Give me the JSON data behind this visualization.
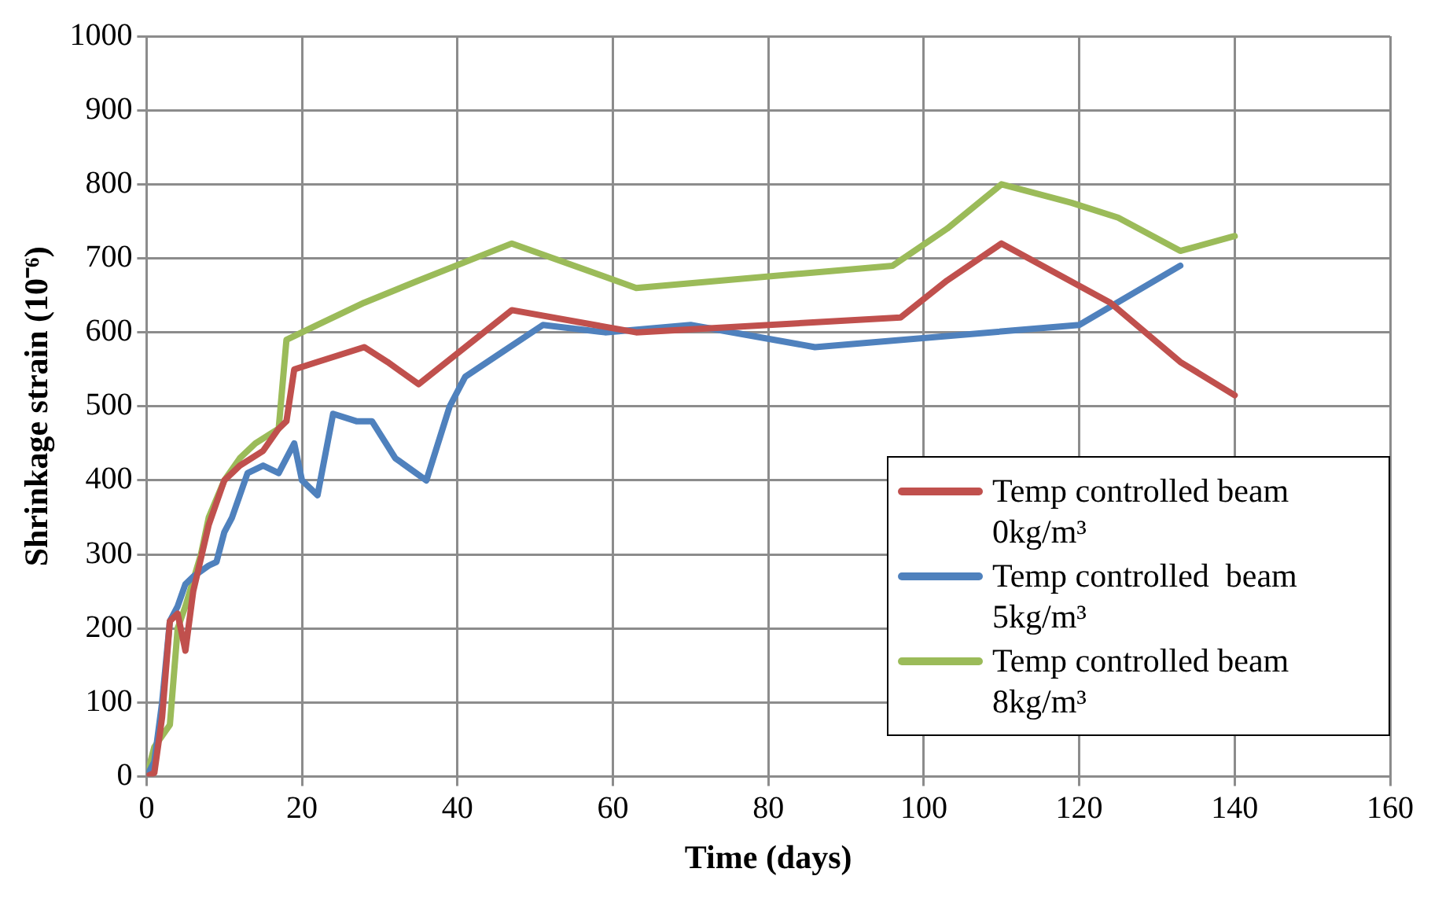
{
  "chart_data": {
    "type": "line",
    "xlabel": "Time (days)",
    "ylabel": "Shrinkage strain (10⁻⁶)",
    "xlim": [
      0,
      160
    ],
    "xticks": [
      0,
      20,
      40,
      60,
      80,
      100,
      120,
      140,
      160
    ],
    "ylim": [
      0,
      1000
    ],
    "yticks": [
      0,
      100,
      200,
      300,
      400,
      500,
      600,
      700,
      800,
      900,
      1000
    ],
    "grid": true,
    "legend": "bottom right",
    "marker": "none",
    "line_style": "solid",
    "series": [
      {
        "name": "Temp controlled beam 0kg/m³",
        "color": "#c0504d",
        "x": [
          0,
          1,
          2,
          3,
          4,
          5,
          6,
          8,
          10,
          11,
          12,
          15,
          17,
          18,
          19,
          22,
          28,
          31,
          35,
          47,
          63,
          97,
          103,
          110,
          124,
          133,
          140
        ],
        "values": [
          0,
          5,
          80,
          210,
          220,
          170,
          250,
          340,
          400,
          410,
          420,
          440,
          470,
          480,
          550,
          560,
          580,
          560,
          530,
          630,
          600,
          620,
          670,
          720,
          640,
          560,
          515
        ]
      },
      {
        "name": "Temp controlled  beam 5kg/m³",
        "color": "#4f81bd",
        "x": [
          0,
          1,
          2,
          3,
          4,
          5,
          6,
          8,
          9,
          10,
          11,
          12,
          13,
          15,
          17,
          18,
          19,
          20,
          22,
          24,
          27,
          29,
          32,
          36,
          39,
          41,
          46,
          51,
          59,
          70,
          86,
          120,
          133
        ],
        "values": [
          0,
          20,
          100,
          210,
          230,
          260,
          270,
          285,
          290,
          330,
          350,
          380,
          410,
          420,
          410,
          430,
          450,
          400,
          380,
          490,
          480,
          480,
          430,
          400,
          500,
          540,
          575,
          610,
          600,
          610,
          580,
          610,
          690
        ]
      },
      {
        "name": "Temp controlled beam 8kg/m³",
        "color": "#9bbb59",
        "x": [
          0,
          1,
          3,
          4,
          5,
          7,
          8,
          10,
          12,
          14,
          17,
          18,
          22,
          28,
          35,
          47,
          63,
          96,
          103,
          110,
          119,
          125,
          133,
          140
        ],
        "values": [
          0,
          40,
          70,
          200,
          230,
          300,
          350,
          400,
          430,
          450,
          470,
          590,
          610,
          640,
          670,
          720,
          660,
          690,
          740,
          800,
          775,
          755,
          710,
          730
        ]
      }
    ]
  }
}
